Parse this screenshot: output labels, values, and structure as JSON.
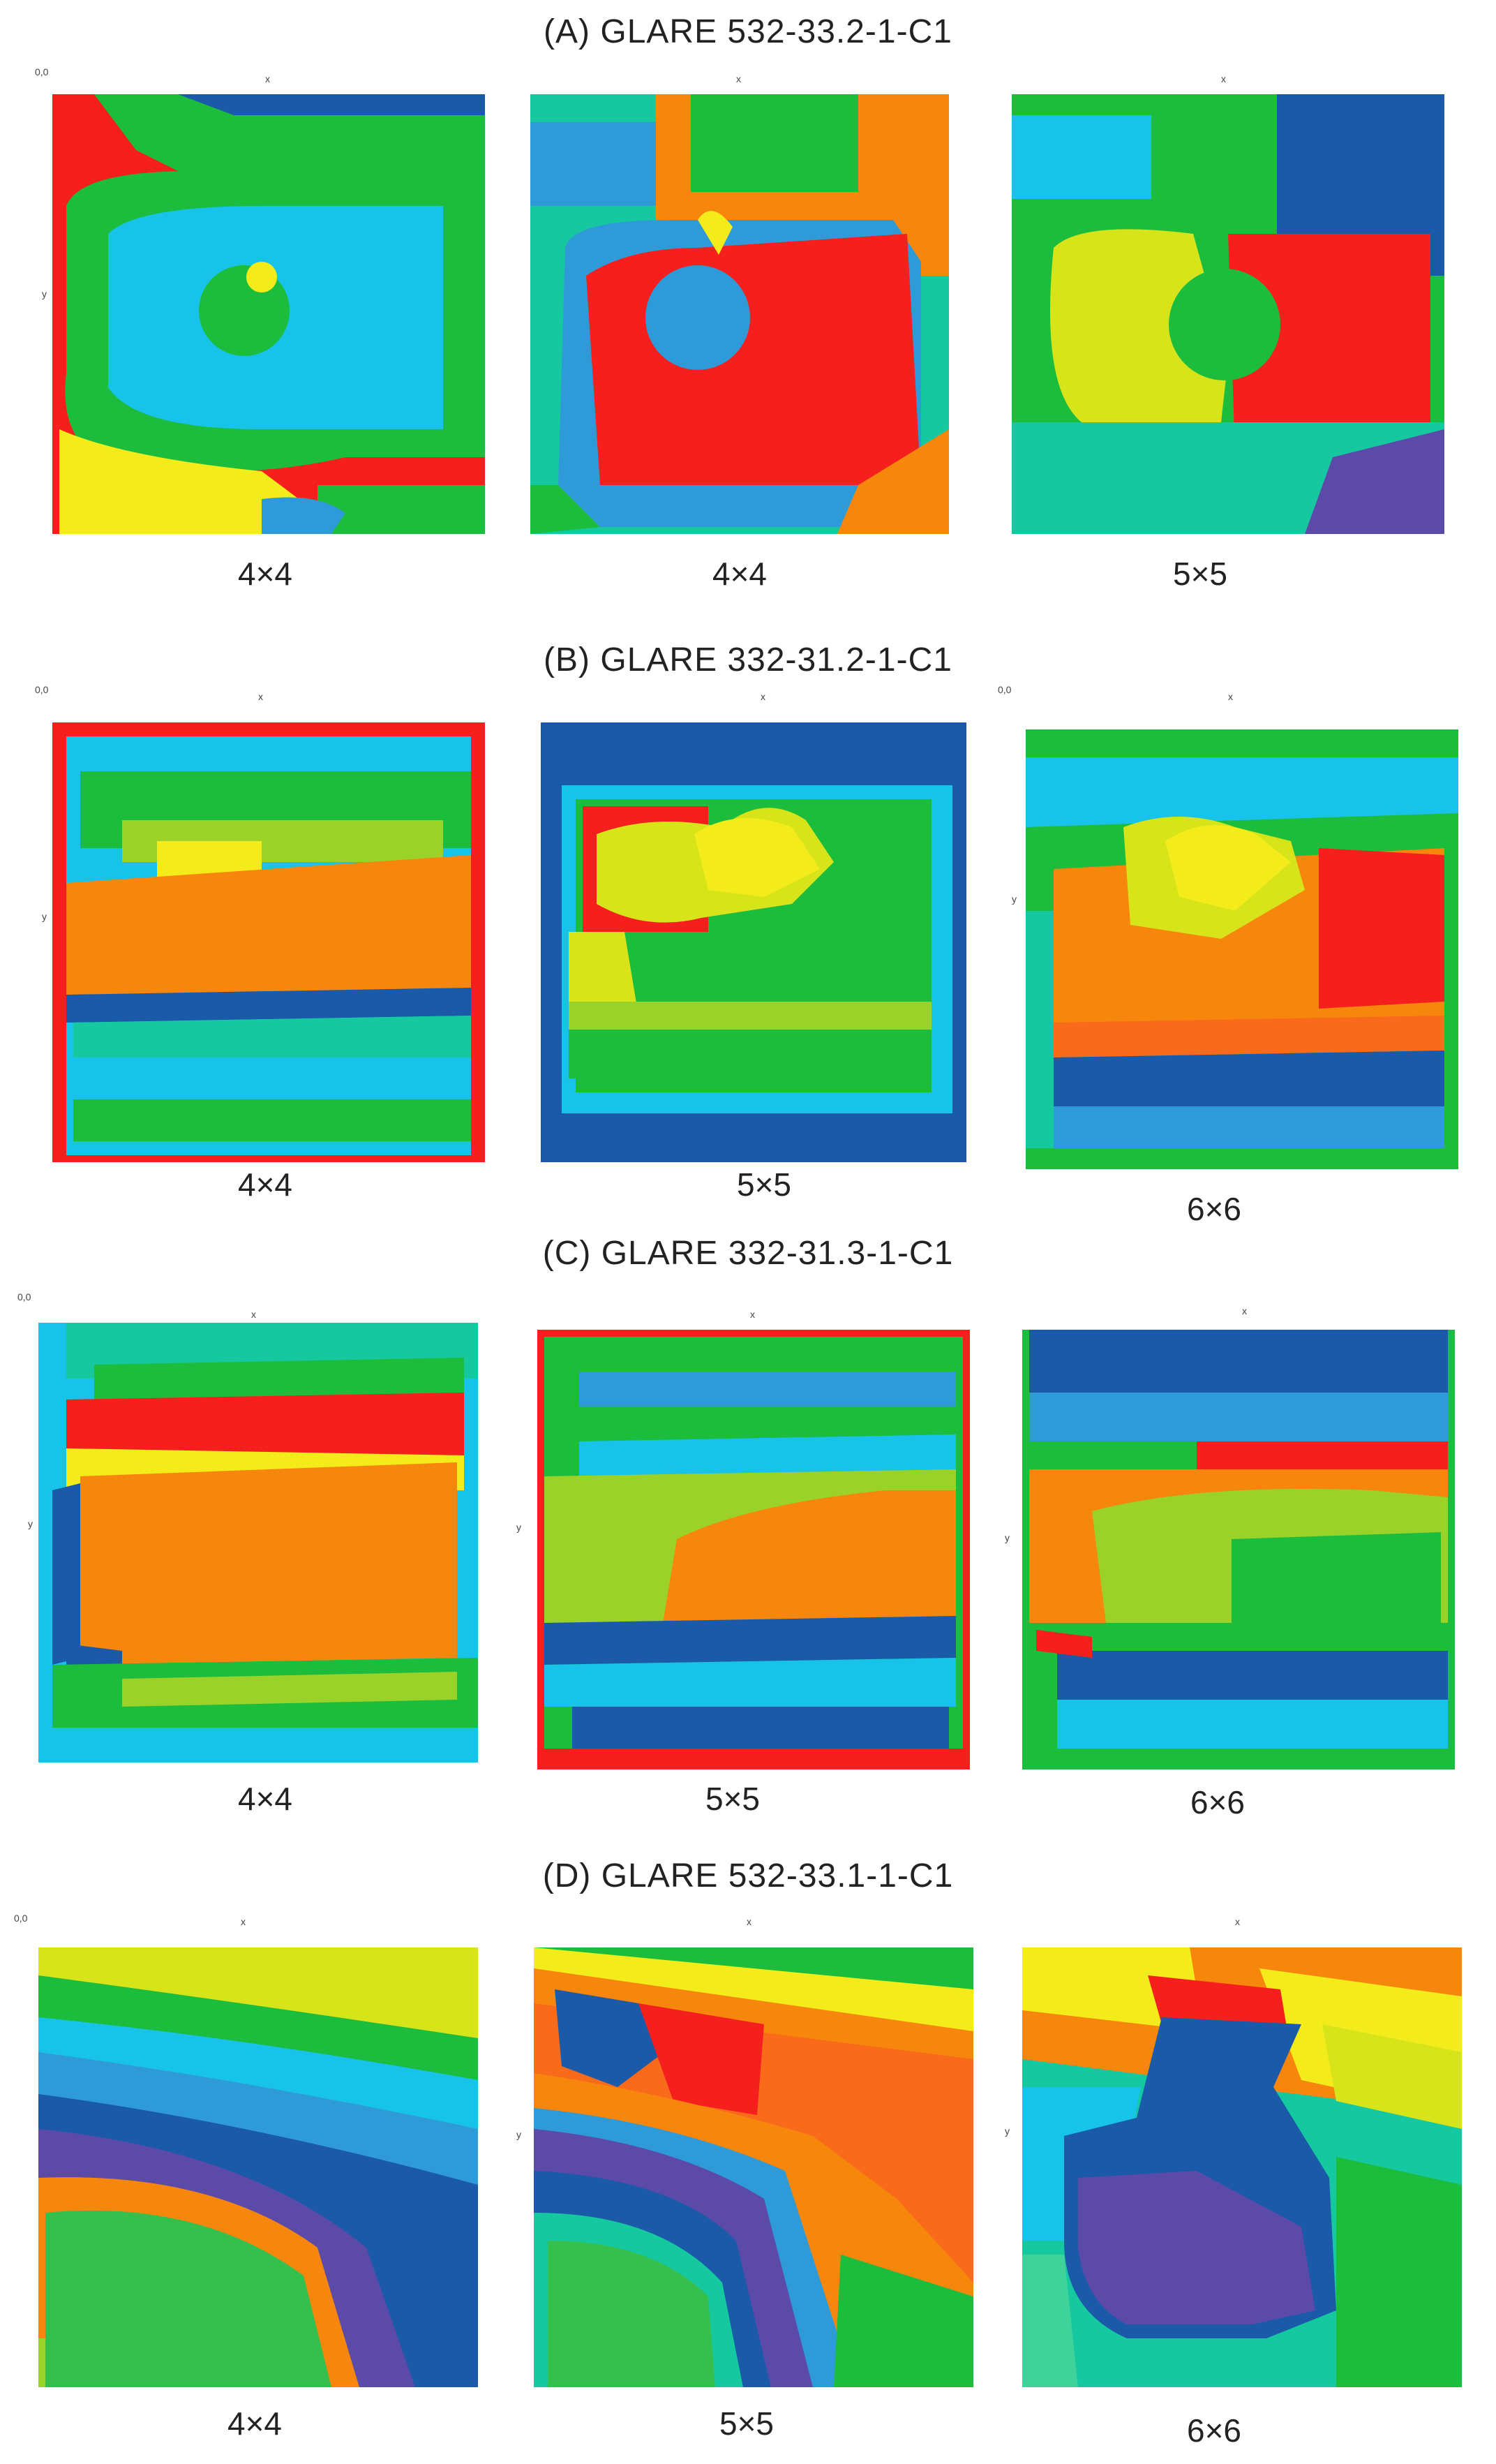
{
  "colors": {
    "red": "#f5201e",
    "orange": "#f7860c",
    "orange2": "#f96a1a",
    "yellow": "#f3ec1a",
    "ylgreen": "#d8e41a",
    "lime": "#9ad22a",
    "green": "#1cbc3c",
    "green2": "#35c04e",
    "teal": "#16c8a0",
    "cyan": "#17c3e8",
    "sky": "#2e9bd8",
    "blue": "#1a5aa8",
    "navy": "#1e3a98",
    "purple": "#5b4aa8",
    "mint": "#3fd29a"
  },
  "axis": {
    "origin": "0,0",
    "x": "x",
    "y": "y"
  },
  "sections": [
    {
      "title": "(A) GLARE 532-33.2-1-C1",
      "panels": [
        {
          "grid": "4×4"
        },
        {
          "grid": "4×4"
        },
        {
          "grid": "5×5"
        }
      ]
    },
    {
      "title": "(B) GLARE 332-31.2-1-C1",
      "panels": [
        {
          "grid": "4×4"
        },
        {
          "grid": "5×5"
        },
        {
          "grid": "6×6"
        }
      ]
    },
    {
      "title": "(C) GLARE 332-31.3-1-C1",
      "panels": [
        {
          "grid": "4×4"
        },
        {
          "grid": "5×5"
        },
        {
          "grid": "6×6"
        }
      ]
    },
    {
      "title": "(D) GLARE 532-33.1-1-C1",
      "panels": [
        {
          "grid": "4×4"
        },
        {
          "grid": "5×5"
        },
        {
          "grid": "6×6"
        }
      ]
    }
  ]
}
